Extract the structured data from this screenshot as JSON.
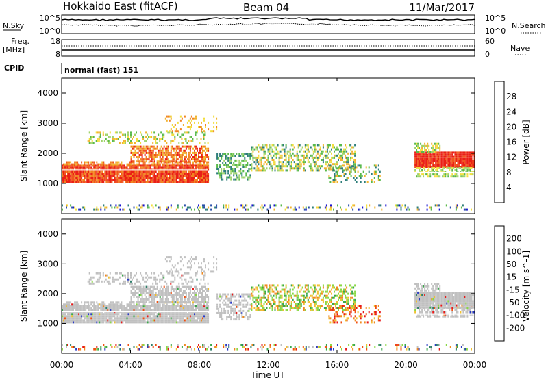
{
  "header": {
    "station": "Hokkaido East (fitACF)",
    "beam": "Beam 04",
    "date": "11/Mar/2017"
  },
  "strip": {
    "nsky_label": "N.Sky",
    "nsky_ticks": [
      "10^5",
      "10^0"
    ],
    "nsearch_label": "N.Search",
    "nsearch_ticks": [
      "10^5",
      "10^0"
    ],
    "freq_label": "Freq.",
    "freq_unit": "[MHz]",
    "freq_ticks": [
      "18",
      "8"
    ],
    "nave_label": "Nave",
    "nave_ticks": [
      "60",
      "0"
    ],
    "cpid_label": "CPID",
    "cpid_value": "normal (fast) 151"
  },
  "chart_data": [
    {
      "type": "heatmap",
      "name": "power",
      "ylabel": "Slant Range [km]",
      "yticks": [
        "4000",
        "3000",
        "2000",
        "1000"
      ],
      "yrange": [
        0,
        4500
      ],
      "colorbar_label": "Power [dB]",
      "colorbar_ticks": [
        "28",
        "24",
        "20",
        "16",
        "12",
        "8",
        "4"
      ],
      "colorbar_colors": [
        "#1a14d2",
        "#2a50a8",
        "#2e7e7a",
        "#59b94a",
        "#9fd36b",
        "#f2de3d",
        "#f1b32e",
        "#f18420",
        "#f0561d",
        "#ea2015"
      ],
      "regions": [
        {
          "time": [
            "00:00",
            "08:30"
          ],
          "range_km": [
            1000,
            1600
          ],
          "level": "24-30"
        },
        {
          "time": [
            "01:30",
            "09:00"
          ],
          "range_km": [
            1600,
            2800
          ],
          "level": "12-24"
        },
        {
          "time": [
            "09:00",
            "17:00"
          ],
          "range_km": [
            1000,
            2300
          ],
          "level": "8-16"
        },
        {
          "time": [
            "20:30",
            "24:00"
          ],
          "range_km": [
            1200,
            2300
          ],
          "level": "20-30"
        }
      ]
    },
    {
      "type": "heatmap",
      "name": "velocity",
      "ylabel": "Slant Range [km]",
      "yticks": [
        "4000",
        "3000",
        "2000",
        "1000"
      ],
      "yrange": [
        0,
        4500
      ],
      "colorbar_label": "Velocity [m s^-1]",
      "colorbar_ticks": [
        "200",
        "100",
        "50",
        "15",
        "-15",
        "-50",
        "-100",
        "-200"
      ],
      "colorbar_colors": [
        "#2a3ac4",
        "#2e7e6a",
        "#3aa84a",
        "#8ad844",
        "#c0c0c0",
        "#f0c030",
        "#f08a20",
        "#f05010",
        "#e81818"
      ],
      "regions": [
        {
          "time": [
            "00:00",
            "09:00"
          ],
          "range_km": [
            1000,
            2600
          ],
          "level": "ground scatter"
        },
        {
          "time": [
            "12:00",
            "18:30"
          ],
          "range_km": [
            1200,
            2300
          ],
          "level": "+15 to -200"
        },
        {
          "time": [
            "20:30",
            "24:00"
          ],
          "range_km": [
            1200,
            2200
          ],
          "level": "ground scatter"
        }
      ],
      "xticks": [
        "00:00",
        "04:00",
        "08:00",
        "12:00",
        "16:00",
        "20:00",
        "00:00"
      ],
      "xlabel": "Time UT"
    }
  ],
  "colors": {
    "frame": "#000000",
    "ground_scatter": "#c0c0c0"
  }
}
